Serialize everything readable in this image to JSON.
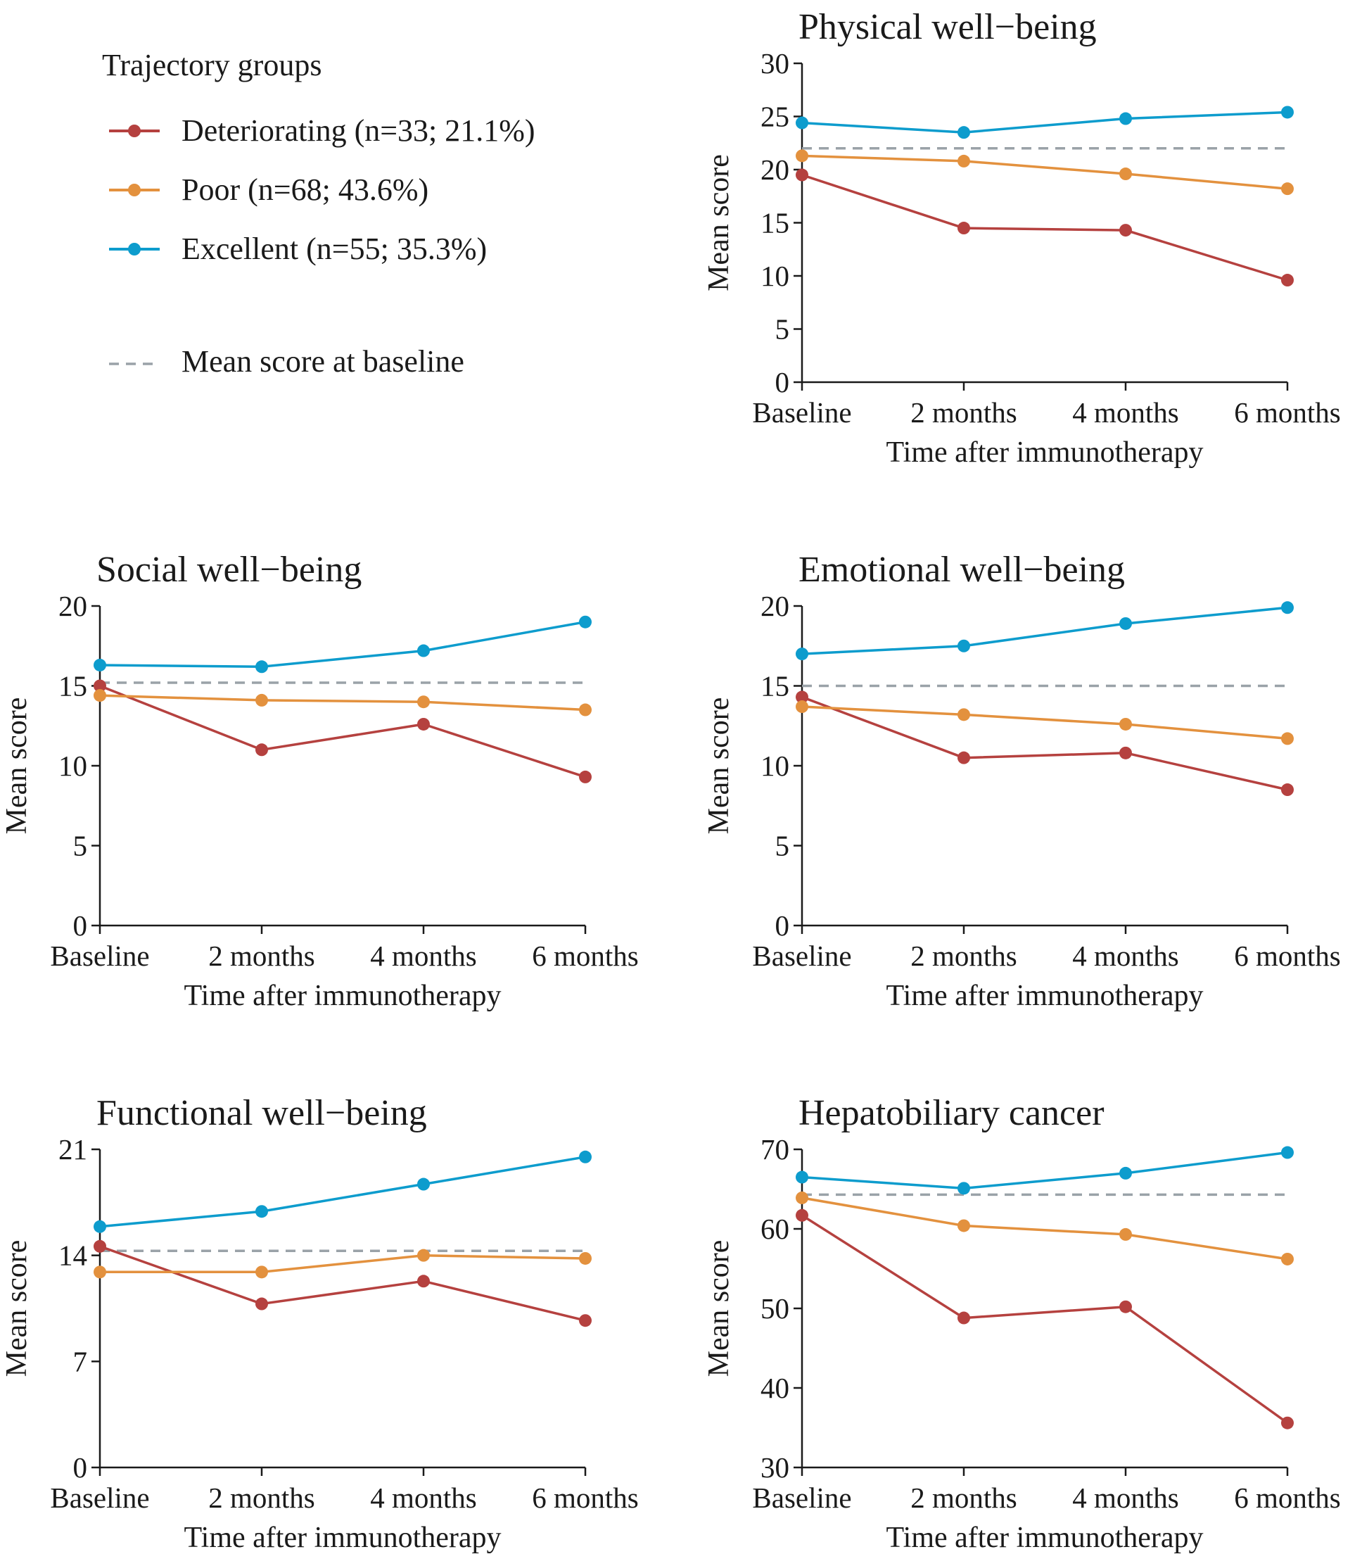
{
  "legend": {
    "title": "Trajectory groups",
    "entries": [
      {
        "key": "deteriorating",
        "label": "Deteriorating (n=33; 21.1%)",
        "color": "#b5413f"
      },
      {
        "key": "poor",
        "label": "Poor (n=68; 43.6%)",
        "color": "#e3913e"
      },
      {
        "key": "excellent",
        "label": "Excellent (n=55; 35.3%)",
        "color": "#0d9ccd"
      }
    ],
    "baseline_label": "Mean score at baseline",
    "baseline_color": "#9aa2a8"
  },
  "chart_data": [
    {
      "type": "line",
      "title": "Physical well−being",
      "xlabel": "Time after immunotherapy",
      "ylabel": "Mean score",
      "categories": [
        "Baseline",
        "2 months",
        "4 months",
        "6 months"
      ],
      "ylim": [
        0,
        30
      ],
      "yticks": [
        0,
        5,
        10,
        15,
        20,
        25,
        30
      ],
      "baseline_mean": 22,
      "series": [
        {
          "name": "Deteriorating (n=33; 21.1%)",
          "values": [
            19.5,
            14.5,
            14.3,
            9.6
          ]
        },
        {
          "name": "Poor (n=68; 43.6%)",
          "values": [
            21.3,
            20.8,
            19.6,
            18.2
          ]
        },
        {
          "name": "Excellent (n=55; 35.3%)",
          "values": [
            24.4,
            23.5,
            24.8,
            25.4
          ]
        }
      ]
    },
    {
      "type": "line",
      "title": "Social well−being",
      "xlabel": "Time after immunotherapy",
      "ylabel": "Mean score",
      "categories": [
        "Baseline",
        "2 months",
        "4 months",
        "6 months"
      ],
      "ylim": [
        0,
        20
      ],
      "yticks": [
        0,
        5,
        10,
        15,
        20
      ],
      "baseline_mean": 15.2,
      "series": [
        {
          "name": "Deteriorating (n=33; 21.1%)",
          "values": [
            15.0,
            11.0,
            12.6,
            9.3
          ]
        },
        {
          "name": "Poor (n=68; 43.6%)",
          "values": [
            14.4,
            14.1,
            14.0,
            13.5
          ]
        },
        {
          "name": "Excellent (n=55; 35.3%)",
          "values": [
            16.3,
            16.2,
            17.2,
            19.0
          ]
        }
      ]
    },
    {
      "type": "line",
      "title": "Emotional well−being",
      "xlabel": "Time after immunotherapy",
      "ylabel": "Mean score",
      "categories": [
        "Baseline",
        "2 months",
        "4 months",
        "6 months"
      ],
      "ylim": [
        0,
        20
      ],
      "yticks": [
        0,
        5,
        10,
        15,
        20
      ],
      "baseline_mean": 15.0,
      "series": [
        {
          "name": "Deteriorating (n=33; 21.1%)",
          "values": [
            14.3,
            10.5,
            10.8,
            8.5
          ]
        },
        {
          "name": "Poor (n=68; 43.6%)",
          "values": [
            13.7,
            13.2,
            12.6,
            11.7
          ]
        },
        {
          "name": "Excellent (n=55; 35.3%)",
          "values": [
            17.0,
            17.5,
            18.9,
            19.9
          ]
        }
      ]
    },
    {
      "type": "line",
      "title": "Functional well−being",
      "xlabel": "Time after immunotherapy",
      "ylabel": "Mean score",
      "categories": [
        "Baseline",
        "2 months",
        "4 months",
        "6 months"
      ],
      "ylim": [
        0,
        21
      ],
      "yticks": [
        0,
        7,
        14,
        21
      ],
      "baseline_mean": 14.3,
      "series": [
        {
          "name": "Deteriorating (n=33; 21.1%)",
          "values": [
            14.6,
            10.8,
            12.3,
            9.7
          ]
        },
        {
          "name": "Poor (n=68; 43.6%)",
          "values": [
            12.9,
            12.9,
            14.0,
            13.8
          ]
        },
        {
          "name": "Excellent (n=55; 35.3%)",
          "values": [
            15.9,
            16.9,
            18.7,
            20.5
          ]
        }
      ]
    },
    {
      "type": "line",
      "title": "Hepatobiliary cancer",
      "xlabel": "Time after immunotherapy",
      "ylabel": "Mean score",
      "categories": [
        "Baseline",
        "2 months",
        "4 months",
        "6 months"
      ],
      "ylim": [
        30,
        70
      ],
      "yticks": [
        30,
        40,
        50,
        60,
        70
      ],
      "baseline_mean": 64.3,
      "series": [
        {
          "name": "Deteriorating (n=33; 21.1%)",
          "values": [
            61.7,
            48.8,
            50.2,
            35.6
          ]
        },
        {
          "name": "Poor (n=68; 43.6%)",
          "values": [
            63.9,
            60.4,
            59.3,
            56.2
          ]
        },
        {
          "name": "Excellent (n=55; 35.3%)",
          "values": [
            66.5,
            65.1,
            67.0,
            69.6
          ]
        }
      ]
    }
  ]
}
